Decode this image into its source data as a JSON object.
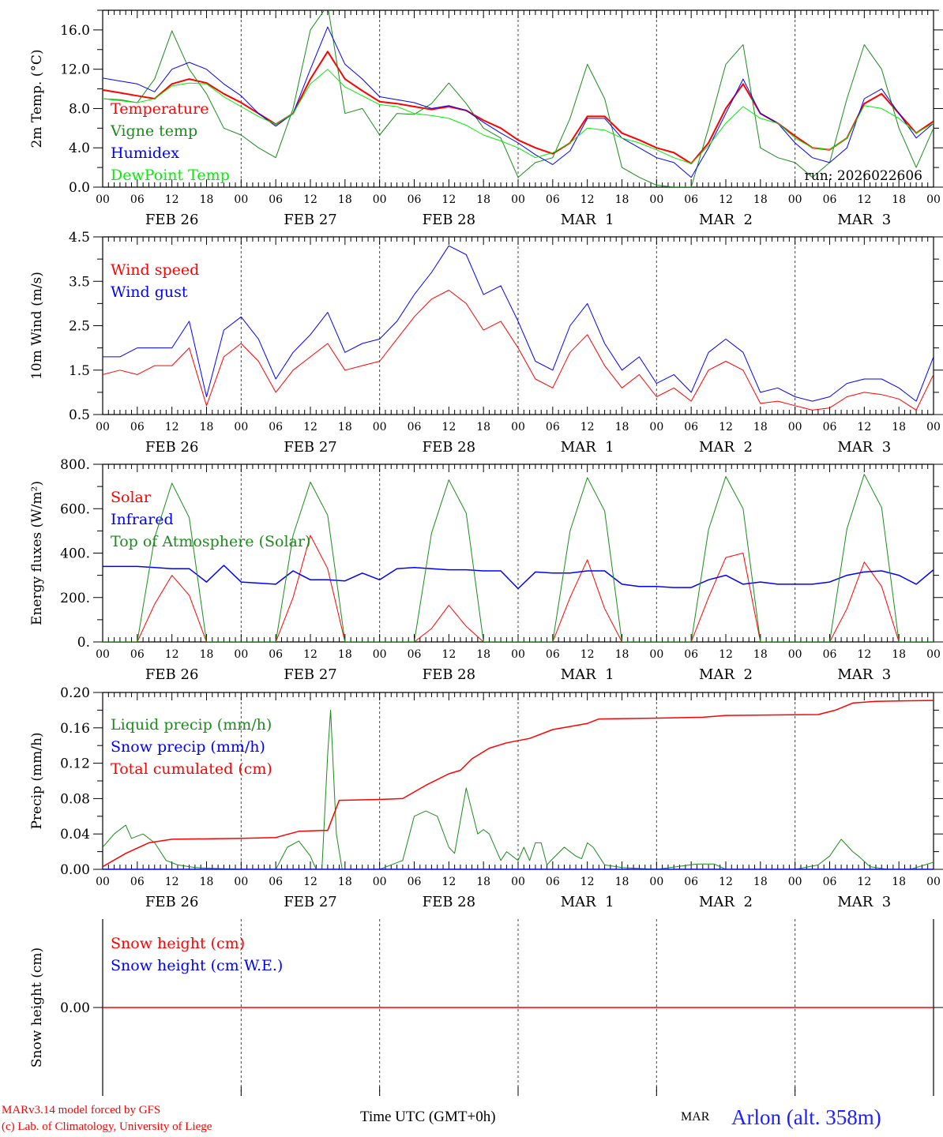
{
  "chart_data": [
    {
      "type": "line",
      "ylabel": "2m Temp. (°C)",
      "ylim": [
        0,
        18
      ],
      "yticks": [
        "0.0",
        "4.0",
        "8.0",
        "12.0",
        "16.0"
      ],
      "ytick_values": [
        0,
        4,
        8,
        12,
        16
      ],
      "minor_step": 2,
      "annotation": "run: 2026022606",
      "x_step_hours": 3,
      "series": [
        {
          "name": "Temperature",
          "color": "#ff0000",
          "width": 2,
          "values": [
            9.9,
            9.6,
            9.3,
            9.0,
            10.5,
            11.0,
            10.6,
            9.5,
            8.6,
            7.5,
            6.4,
            7.5,
            11.0,
            13.8,
            11.0,
            9.8,
            8.7,
            8.5,
            8.2,
            7.9,
            8.2,
            7.8,
            6.8,
            6.0,
            4.8,
            4.0,
            3.4,
            4.5,
            7.2,
            7.2,
            5.5,
            4.8,
            4.0,
            3.5,
            2.4,
            4.5,
            8.0,
            10.5,
            7.5,
            6.5,
            5.2,
            4.0,
            3.8,
            5.0,
            8.5,
            9.5,
            7.5,
            5.5,
            6.7
          ]
        },
        {
          "name": "Vigne temp",
          "color": "#1a8c1a",
          "width": 1,
          "values": [
            9.0,
            8.9,
            8.6,
            11.0,
            15.9,
            12.0,
            9.5,
            6.0,
            5.3,
            4.0,
            3.0,
            8.0,
            16.0,
            18.5,
            7.5,
            8.0,
            5.3,
            7.5,
            7.4,
            8.5,
            10.6,
            8.5,
            6.0,
            5.0,
            1.0,
            2.5,
            3.0,
            7.0,
            12.5,
            9.0,
            2.0,
            1.0,
            0.2,
            0.0,
            0.0,
            6.0,
            12.5,
            14.5,
            4.0,
            3.0,
            2.5,
            1.0,
            2.5,
            9.0,
            14.5,
            12.0,
            6.0,
            2.0,
            6.0
          ]
        },
        {
          "name": "Humidex",
          "color": "#0000ff",
          "width": 1,
          "values": [
            11.1,
            10.8,
            10.5,
            9.7,
            12.0,
            12.7,
            12.0,
            10.5,
            9.3,
            7.5,
            6.2,
            7.5,
            12.0,
            16.3,
            12.5,
            11.0,
            9.2,
            8.9,
            8.6,
            8.0,
            8.3,
            7.8,
            6.6,
            5.5,
            4.5,
            3.3,
            2.3,
            3.7,
            7.0,
            7.0,
            5.0,
            4.0,
            3.0,
            2.5,
            1.0,
            4.0,
            7.5,
            11.0,
            7.5,
            6.5,
            4.5,
            3.0,
            2.5,
            4.0,
            9.0,
            10.0,
            7.5,
            5.0,
            6.5
          ]
        },
        {
          "name": "DewPoint Temp",
          "color": "#00ee00",
          "width": 1,
          "values": [
            9.0,
            8.8,
            8.6,
            9.0,
            10.3,
            10.6,
            10.5,
            9.2,
            8.2,
            7.2,
            6.4,
            7.5,
            10.5,
            12.0,
            10.2,
            9.3,
            8.4,
            8.2,
            7.5,
            7.3,
            7.0,
            6.3,
            5.3,
            4.7,
            4.0,
            3.0,
            3.5,
            4.5,
            6.0,
            5.8,
            5.0,
            4.5,
            3.8,
            3.0,
            2.4,
            4.2,
            6.5,
            8.2,
            7.0,
            6.5,
            5.0,
            4.0,
            3.8,
            5.0,
            8.3,
            8.0,
            7.0,
            5.5,
            6.5
          ]
        }
      ]
    },
    {
      "type": "line",
      "ylabel": "10m Wind (m/s)",
      "ylim": [
        0.5,
        4.5
      ],
      "yticks": [
        "0.5",
        "1.5",
        "2.5",
        "3.5",
        "4.5"
      ],
      "ytick_values": [
        0.5,
        1.5,
        2.5,
        3.5,
        4.5
      ],
      "minor_step": 0.5,
      "x_step_hours": 3,
      "series": [
        {
          "name": "Wind speed",
          "color": "#ff0000",
          "width": 1,
          "values": [
            1.4,
            1.5,
            1.4,
            1.6,
            1.6,
            2.0,
            0.7,
            1.8,
            2.1,
            1.7,
            1.0,
            1.5,
            1.8,
            2.1,
            1.5,
            1.6,
            1.7,
            2.2,
            2.7,
            3.1,
            3.3,
            3.0,
            2.4,
            2.6,
            2.0,
            1.3,
            1.1,
            1.9,
            2.3,
            1.6,
            1.1,
            1.4,
            0.9,
            1.1,
            0.8,
            1.5,
            1.7,
            1.5,
            0.75,
            0.8,
            0.7,
            0.6,
            0.65,
            0.9,
            1.0,
            0.95,
            0.85,
            0.6,
            1.4
          ]
        },
        {
          "name": "Wind gust",
          "color": "#0000ff",
          "width": 1,
          "values": [
            1.8,
            1.8,
            2.0,
            2.0,
            2.0,
            2.6,
            0.9,
            2.4,
            2.7,
            2.2,
            1.3,
            1.9,
            2.3,
            2.8,
            1.9,
            2.1,
            2.2,
            2.6,
            3.2,
            3.7,
            4.3,
            4.1,
            3.2,
            3.4,
            2.6,
            1.7,
            1.5,
            2.5,
            3.0,
            2.1,
            1.5,
            1.8,
            1.2,
            1.4,
            1.0,
            1.9,
            2.2,
            1.9,
            1.0,
            1.1,
            0.9,
            0.8,
            0.9,
            1.2,
            1.3,
            1.3,
            1.1,
            0.8,
            1.8
          ]
        }
      ]
    },
    {
      "type": "line",
      "ylabel": "Energy fluxes (W/m²)",
      "ylim": [
        0,
        800
      ],
      "yticks": [
        "0.",
        "200.",
        "400.",
        "600.",
        "800."
      ],
      "ytick_values": [
        0,
        200,
        400,
        600,
        800
      ],
      "minor_step": 100,
      "x_step_hours": 3,
      "series": [
        {
          "name": "Solar",
          "color": "#ff0000",
          "width": 1,
          "values": [
            0,
            0,
            0,
            170,
            300,
            210,
            0,
            0,
            0,
            0,
            0,
            200,
            480,
            330,
            0,
            0,
            0,
            0,
            0,
            60,
            165,
            70,
            0,
            0,
            0,
            0,
            0,
            200,
            370,
            150,
            0,
            0,
            0,
            0,
            0,
            200,
            380,
            400,
            0,
            0,
            0,
            0,
            0,
            150,
            360,
            250,
            0,
            0,
            0
          ]
        },
        {
          "name": "Infrared",
          "color": "#0000ff",
          "width": 1.5,
          "values": [
            340,
            340,
            340,
            335,
            330,
            330,
            270,
            345,
            270,
            265,
            260,
            320,
            280,
            280,
            275,
            310,
            280,
            330,
            335,
            330,
            325,
            325,
            320,
            320,
            240,
            315,
            310,
            310,
            320,
            320,
            260,
            250,
            250,
            245,
            245,
            280,
            300,
            260,
            270,
            260,
            260,
            260,
            270,
            300,
            315,
            320,
            300,
            260,
            325
          ]
        },
        {
          "name": "Top of Atmosphere (Solar)",
          "color": "#1a8c1a",
          "width": 1,
          "values": [
            0,
            0,
            0,
            470,
            715,
            560,
            0,
            0,
            0,
            0,
            0,
            480,
            720,
            570,
            0,
            0,
            0,
            0,
            0,
            490,
            730,
            580,
            0,
            0,
            0,
            0,
            0,
            500,
            740,
            590,
            0,
            0,
            0,
            0,
            0,
            505,
            745,
            600,
            0,
            0,
            0,
            0,
            0,
            510,
            755,
            605,
            0,
            0,
            0
          ]
        }
      ]
    },
    {
      "type": "line",
      "ylabel": "Precip (mm/h)",
      "ylim": [
        0,
        0.2
      ],
      "yticks": [
        "0.00",
        "0.04",
        "0.08",
        "0.12",
        "0.16",
        "0.20"
      ],
      "ytick_values": [
        0,
        0.04,
        0.08,
        0.12,
        0.16,
        0.2
      ],
      "minor_step": 0.02,
      "series": [
        {
          "name": "Liquid precip (mm/h)",
          "color": "#1a8c1a",
          "width": 1,
          "points": [
            [
              0,
              0.025
            ],
            [
              2,
              0.04
            ],
            [
              4,
              0.05
            ],
            [
              5,
              0.035
            ],
            [
              7,
              0.04
            ],
            [
              9,
              0.03
            ],
            [
              11,
              0.01
            ],
            [
              13,
              0.005
            ],
            [
              16,
              0.002
            ],
            [
              24,
              0
            ],
            [
              30,
              0
            ],
            [
              32,
              0.025
            ],
            [
              34,
              0.032
            ],
            [
              36,
              0.015
            ],
            [
              37,
              0
            ],
            [
              38,
              0
            ],
            [
              39,
              0.13
            ],
            [
              39.5,
              0.18
            ],
            [
              40.5,
              0.04
            ],
            [
              41.5,
              0
            ],
            [
              48,
              0
            ],
            [
              52,
              0.01
            ],
            [
              54,
              0.06
            ],
            [
              56,
              0.066
            ],
            [
              58,
              0.06
            ],
            [
              60,
              0.025
            ],
            [
              61,
              0.018
            ],
            [
              63,
              0.092
            ],
            [
              65,
              0.04
            ],
            [
              66,
              0.045
            ],
            [
              67,
              0.04
            ],
            [
              69,
              0.01
            ],
            [
              70,
              0.02
            ],
            [
              72,
              0.01
            ],
            [
              73,
              0.025
            ],
            [
              74,
              0.01
            ],
            [
              75,
              0.03
            ],
            [
              76,
              0.03
            ],
            [
              77,
              0.005
            ],
            [
              78,
              0.012
            ],
            [
              80,
              0.025
            ],
            [
              82,
              0.015
            ],
            [
              83,
              0.012
            ],
            [
              84,
              0.03
            ],
            [
              85,
              0.025
            ],
            [
              87,
              0.005
            ],
            [
              90,
              0.002
            ],
            [
              96,
              0
            ],
            [
              103,
              0.006
            ],
            [
              106,
              0.006
            ],
            [
              108,
              0
            ],
            [
              120,
              0
            ],
            [
              124,
              0.005
            ],
            [
              126,
              0.015
            ],
            [
              128,
              0.034
            ],
            [
              130,
              0.02
            ],
            [
              131,
              0.015
            ],
            [
              133,
              0.003
            ],
            [
              136,
              0
            ],
            [
              140,
              0
            ],
            [
              144,
              0.008
            ]
          ]
        },
        {
          "name": "Snow precip (mm/h)",
          "color": "#0000ff",
          "width": 1.5,
          "points": [
            [
              0,
              0
            ],
            [
              144,
              0
            ]
          ]
        },
        {
          "name": "Total cumulated (cm)",
          "color": "#ff0000",
          "width": 1.5,
          "points": [
            [
              0,
              0.003
            ],
            [
              4,
              0.018
            ],
            [
              8,
              0.03
            ],
            [
              12,
              0.034
            ],
            [
              24,
              0.035
            ],
            [
              30,
              0.036
            ],
            [
              34,
              0.043
            ],
            [
              38,
              0.044
            ],
            [
              39,
              0.044
            ],
            [
              41,
              0.078
            ],
            [
              48,
              0.079
            ],
            [
              52,
              0.08
            ],
            [
              56,
              0.095
            ],
            [
              60,
              0.108
            ],
            [
              62,
              0.112
            ],
            [
              64,
              0.125
            ],
            [
              67,
              0.137
            ],
            [
              70,
              0.143
            ],
            [
              74,
              0.148
            ],
            [
              78,
              0.158
            ],
            [
              84,
              0.165
            ],
            [
              86,
              0.17
            ],
            [
              96,
              0.171
            ],
            [
              104,
              0.172
            ],
            [
              108,
              0.174
            ],
            [
              124,
              0.175
            ],
            [
              127,
              0.18
            ],
            [
              130,
              0.188
            ],
            [
              134,
              0.19
            ],
            [
              144,
              0.191
            ]
          ]
        }
      ]
    },
    {
      "type": "line",
      "ylabel": "Snow height (cm)",
      "ylim": [
        -1,
        1
      ],
      "yticks": [
        "0.00"
      ],
      "ytick_values": [
        0
      ],
      "series": [
        {
          "name": "Snow height (cm)",
          "color": "#ff0000",
          "width": 1.5,
          "points": [
            [
              0,
              0
            ],
            [
              144,
              0
            ]
          ]
        },
        {
          "name": "Snow height (cm W.E.)",
          "color": "#0000ff",
          "width": 1,
          "points": []
        }
      ]
    }
  ],
  "x_axis": {
    "hour_labels": [
      "00",
      "06",
      "12",
      "18"
    ],
    "end_label": "00",
    "days": [
      "FEB 26",
      "FEB 27",
      "FEB 28",
      "MAR  1",
      "MAR  2",
      "MAR  3"
    ],
    "range_hours": [
      0,
      144
    ],
    "xlabel": "Time UTC (GMT+0h)"
  },
  "footer": {
    "credit_line1": "MARv3.14 model forced by GFS",
    "credit_line2": "(c) Lab. of Climatology, University of Liege",
    "station": "Arlon (alt. 358m)",
    "overlap_label": "MAR"
  }
}
